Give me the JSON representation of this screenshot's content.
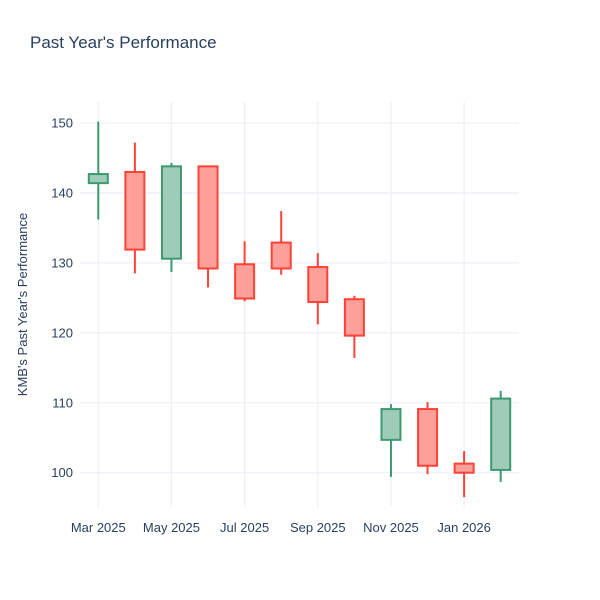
{
  "title": "Past Year's Performance",
  "chart_data": {
    "type": "candlestick",
    "title": "Past Year's Performance",
    "xlabel": "",
    "ylabel": "KMB's Past Year's Performance",
    "categories": [
      "Mar 2025",
      "Apr 2025",
      "May 2025",
      "Jun 2025",
      "Jul 2025",
      "Aug 2025",
      "Sep 2025",
      "Oct 2025",
      "Nov 2025",
      "Dec 2025",
      "Jan 2026",
      "Feb 2026"
    ],
    "open": [
      141.4,
      143.0,
      130.6,
      143.8,
      129.8,
      132.9,
      129.4,
      124.8,
      104.7,
      109.1,
      101.3,
      100.4
    ],
    "high": [
      150.2,
      147.2,
      144.3,
      143.8,
      133.1,
      137.4,
      131.4,
      125.3,
      109.8,
      110.1,
      103.1,
      111.7
    ],
    "low": [
      136.2,
      128.5,
      128.7,
      126.5,
      124.5,
      128.3,
      121.2,
      116.4,
      99.4,
      99.8,
      96.5,
      98.7
    ],
    "close": [
      142.7,
      131.9,
      143.8,
      129.2,
      124.9,
      129.2,
      124.4,
      119.6,
      109.1,
      101.0,
      100.0,
      110.6
    ],
    "x_tick_labels": [
      "Mar 2025",
      "May 2025",
      "Jul 2025",
      "Sep 2025",
      "Nov 2025",
      "Jan 2026"
    ],
    "y_ticks": [
      100,
      110,
      120,
      130,
      140,
      150
    ],
    "ylim": [
      95.1,
      153.0
    ],
    "grid": true,
    "legend": "none",
    "colors": {
      "increasing_line": "#3D9970",
      "increasing_fill": "#9ECCB8",
      "decreasing_line": "#FF4136",
      "decreasing_fill": "#FF9F9A",
      "gridline": "#EBF0F8",
      "text": "#2a3f5f",
      "background": "#ffffff"
    }
  }
}
